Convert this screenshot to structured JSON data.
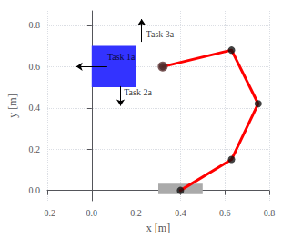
{
  "chart_data": {
    "type": "diagram",
    "xlabel": "x [m]",
    "ylabel": "y [m]",
    "xlim": [
      -0.2,
      0.8
    ],
    "ylim": [
      -0.05,
      0.87
    ],
    "xticks": [
      {
        "value": -0.2,
        "label": "−0.2"
      },
      {
        "value": 0,
        "label": "0.0"
      },
      0.2,
      0.4,
      0.6,
      0.8
    ],
    "yticks": [
      {
        "value": 0,
        "label": "0.0"
      },
      0.2,
      0.4,
      0.6,
      0.8
    ],
    "grid": true,
    "rects": [
      {
        "x": 0.0,
        "y": 0.5,
        "width": 0.2,
        "height": 0.2,
        "color": "#3333ff"
      },
      {
        "x": 0.3,
        "y": -0.018,
        "width": 0.2,
        "height": 0.05,
        "color": "#aaaaaa"
      }
    ],
    "series": [
      {
        "type": "line",
        "color": "#ff0000",
        "x": [
          0.4,
          0.63,
          0.75,
          0.63,
          0.32
        ],
        "values": [
          0.0,
          0.15,
          0.42,
          0.68,
          0.6
        ]
      },
      {
        "type": "scatter",
        "marker": "circle",
        "color": "#111111",
        "x": [
          0.4,
          0.63,
          0.75,
          0.63,
          0.32
        ],
        "values": [
          0.0,
          0.15,
          0.42,
          0.68,
          0.6
        ]
      },
      {
        "type": "scatter",
        "marker": "circle",
        "color": "#5a3030",
        "x": [
          0.32
        ],
        "values": [
          0.6
        ]
      }
    ],
    "annotations": [
      {
        "text": "Task 1a",
        "x": 0.07,
        "y": 0.625,
        "arrow_from": [
          0.07,
          0.6
        ],
        "arrow_to": [
          -0.07,
          0.6
        ],
        "color": "#000000"
      },
      {
        "text": "Task 2a",
        "x": 0.145,
        "y": 0.455,
        "arrow_from": [
          0.13,
          0.505
        ],
        "arrow_to": [
          0.13,
          0.41
        ],
        "color": "#000000"
      },
      {
        "text": "Task 3a",
        "x": 0.245,
        "y": 0.735,
        "arrow_from": [
          0.225,
          0.72
        ],
        "arrow_to": [
          0.225,
          0.83
        ],
        "color": "#000000"
      }
    ]
  }
}
